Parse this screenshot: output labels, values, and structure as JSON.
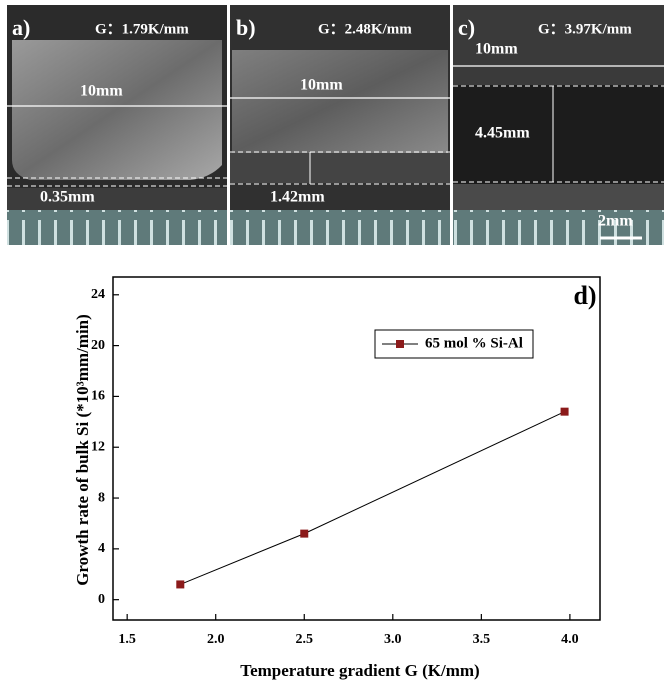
{
  "panels": [
    {
      "label": "a)",
      "gradient": "G：1.79K/mm",
      "width_label": "10mm",
      "height_label": "0.35mm"
    },
    {
      "label": "b)",
      "gradient": "G：2.48K/mm",
      "width_label": "10mm",
      "height_label": "1.42mm"
    },
    {
      "label": "c)",
      "gradient": "G：3.97K/mm",
      "width_label": "10mm",
      "height_label": "4.45mm"
    }
  ],
  "scale_bar": "2mm",
  "chart_data": {
    "type": "line",
    "panel_label": "d)",
    "x_label": "Temperature gradient G (K/mm)",
    "y_label": "Growth rate of bulk Si (*10³mm/min)",
    "x": [
      1.8,
      2.5,
      3.97
    ],
    "series": [
      {
        "name": "65 mol % Si-Al",
        "color": "#8b1a1a",
        "line_color": "#000000",
        "values": [
          1.2,
          5.2,
          14.8
        ]
      }
    ],
    "xlim": [
      1.42,
      4.17
    ],
    "ylim": [
      -1.6,
      25.4
    ],
    "xticks": [
      1.5,
      {
        "value": 2,
        "label": "2.0"
      },
      2.5,
      {
        "value": 3,
        "label": "3.0"
      },
      3.5,
      {
        "value": 4,
        "label": "4.0"
      }
    ],
    "yticks": [
      0,
      4,
      8,
      12,
      16,
      20,
      24
    ],
    "grid": false
  }
}
